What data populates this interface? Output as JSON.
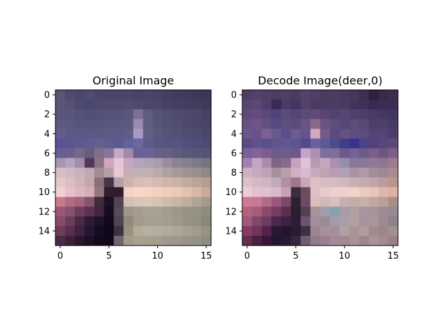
{
  "chart_data": [
    {
      "type": "heatmap",
      "title": "Original Image",
      "xlabel": "",
      "ylabel": "",
      "grid": false,
      "xlim": [
        -0.5,
        15.5
      ],
      "ylim": [
        15.5,
        -0.5
      ],
      "x_ticks": [
        0,
        5,
        10,
        15
      ],
      "y_ticks": [
        0,
        2,
        4,
        6,
        8,
        10,
        12,
        14
      ],
      "pixels": [
        [
          "#5b5475",
          "#4f496d",
          "#4a4670",
          "#514a72",
          "#4b4669",
          "#4c4468",
          "#4b4467",
          "#4c4569",
          "#4a4266",
          "#4b4467",
          "#4a4064",
          "#463d60",
          "#433b5c",
          "#413a5a",
          "#3f3758",
          "#3e3556"
        ],
        [
          "#5b5577",
          "#555076",
          "#4d4a72",
          "#4b4770",
          "#4d4971",
          "#4e4a70",
          "#4f4b70",
          "#504c71",
          "#4c4a6e",
          "#4a476c",
          "#4a456a",
          "#484166",
          "#454063",
          "#433e61",
          "#423c5f",
          "#3f395b"
        ],
        [
          "#5a5478",
          "#58547a",
          "#545178",
          "#524f76",
          "#545177",
          "#565377",
          "#565378",
          "#58567a",
          "#7c6e96",
          "#5f5c80",
          "#555276",
          "#534f72",
          "#4f4b6f",
          "#4e4a6e",
          "#4a476b",
          "#474365"
        ],
        [
          "#5f5881",
          "#5a5780",
          "#575580",
          "#56547e",
          "#57557e",
          "#59577f",
          "#5a587f",
          "#5b5980",
          "#9a8ab0",
          "#605d82",
          "#575578",
          "#535074",
          "#504d71",
          "#4e4a6f",
          "#4a476b",
          "#474467"
        ],
        [
          "#645b8a",
          "#5d5985",
          "#5a5884",
          "#5a5884",
          "#5b5984",
          "#5d5b85",
          "#5d5b84",
          "#5f5c85",
          "#ab98c4",
          "#645f87",
          "#5a587d",
          "#56537a",
          "#545177",
          "#514e74",
          "#4e4b70",
          "#4a476c"
        ],
        [
          "#5b5290",
          "#585792",
          "#5c5a8f",
          "#5f5d90",
          "#62608f",
          "#5c5b92",
          "#5a5a91",
          "#6360a0",
          "#6a689c",
          "#5e5b8e",
          "#585784",
          "#57547f",
          "#555380",
          "#52507d",
          "#4f4d79",
          "#4d4b76"
        ],
        [
          "#685e98",
          "#6a5f90",
          "#77688b",
          "#6c5c7c",
          "#7f6f8c",
          "#897599",
          "#c5a8c8",
          "#a389a8",
          "#6c6092",
          "#6b6394",
          "#656089",
          "#636083",
          "#5e5b7c",
          "#5b5879",
          "#585676",
          "#565474"
        ],
        [
          "#a594b2",
          "#b3a5c1",
          "#a48caa",
          "#4e3a54",
          "#8c7187",
          "#cfa6bb",
          "#e6c4d4",
          "#c6a7c0",
          "#b3a4bb",
          "#aea2b4",
          "#a89cad",
          "#9a8e9e",
          "#8c8393",
          "#838090",
          "#7d7a8a",
          "#77737f"
        ],
        [
          "#d6bec5",
          "#cfbac1",
          "#c9b2ba",
          "#c0aab3",
          "#a48b96",
          "#b79ea9",
          "#e8c8d4",
          "#c8adb4",
          "#c3b0b5",
          "#c1b1b4",
          "#b9abac",
          "#aea1a2",
          "#a69a99",
          "#a09393",
          "#9b8f8f",
          "#938887"
        ],
        [
          "#e4c8c9",
          "#dabfc0",
          "#cfb5b6",
          "#c4a9ab",
          "#8b6f7c",
          "#4a3143",
          "#b49fa7",
          "#ceb0ad",
          "#d5bdb5",
          "#d9c0b6",
          "#d4bab0",
          "#cfb5ab",
          "#c9b2a6",
          "#c2ab9f",
          "#bba496",
          "#b49d91"
        ],
        [
          "#f0d0d6",
          "#e6c0cc",
          "#ddb6c2",
          "#d5adbb",
          "#95757f",
          "#2d1f2e",
          "#2e1d2a",
          "#f5d2c6",
          "#fbd7c7",
          "#f7d5c4",
          "#f2d0c0",
          "#efcdbd",
          "#ebc9b8",
          "#e2c1ae",
          "#d7b8a5",
          "#caa995"
        ],
        [
          "#c67a8d",
          "#b16c80",
          "#a3657a",
          "#86546a",
          "#412c3d",
          "#1c1021",
          "#524454",
          "#d1c0b3",
          "#d7c4b4",
          "#dac8b8",
          "#d4c2b2",
          "#cebcac",
          "#c7b6a6",
          "#bdae9f",
          "#b0a595",
          "#a49b8c"
        ],
        [
          "#9b5773",
          "#87506c",
          "#6d3f5e",
          "#5a3353",
          "#40263f",
          "#150c1f",
          "#57495c",
          "#9f9686",
          "#a69c8c",
          "#a9a191",
          "#a8a092",
          "#a49d8f",
          "#9e978a",
          "#989485",
          "#969283",
          "#8f8d7f"
        ],
        [
          "#864c6b",
          "#6c3c5d",
          "#4a2a47",
          "#2e1a34",
          "#1e1229",
          "#120a1a",
          "#4f4454",
          "#918a7a",
          "#a29a8a",
          "#a59f8e",
          "#a6a091",
          "#a39e90",
          "#9d998c",
          "#979486",
          "#938f81",
          "#8a877a"
        ],
        [
          "#6e3c58",
          "#582f4c",
          "#3f2240",
          "#251631",
          "#140c23",
          "#0e0819",
          "#3a3244",
          "#999081",
          "#b3aa98",
          "#b8b09f",
          "#b5ae9f",
          "#b1ab9c",
          "#aca795",
          "#a5a08f",
          "#a09b8a",
          "#979281"
        ],
        [
          "#4b2a44",
          "#3d2139",
          "#2a172d",
          "#1c1025",
          "#14091c",
          "#100818",
          "#6e6574",
          "#a29a8c",
          "#a8a192",
          "#a59f90",
          "#a39d8e",
          "#a09a8c",
          "#9c988a",
          "#989587",
          "#969385",
          "#8f8c80"
        ]
      ]
    },
    {
      "type": "heatmap",
      "title": "Decode Image(deer,0)",
      "xlabel": "",
      "ylabel": "",
      "grid": false,
      "xlim": [
        -0.5,
        15.5
      ],
      "ylim": [
        15.5,
        -0.5
      ],
      "x_ticks": [
        0,
        5,
        10,
        15
      ],
      "y_ticks": [
        0,
        2,
        4,
        6,
        8,
        10,
        12,
        14
      ],
      "pixels": [
        [
          "#4d3d63",
          "#52426a",
          "#4e3f66",
          "#4b3c61",
          "#503f63",
          "#4c3b5f",
          "#55426a",
          "#4f3e63",
          "#4a3a5e",
          "#4d3c60",
          "#4a395c",
          "#46365a",
          "#3e2e4f",
          "#2f1f3f",
          "#38284a",
          "#3d2d4f"
        ],
        [
          "#59466f",
          "#5d4676",
          "#4f3e6c",
          "#352a58",
          "#4a3b66",
          "#433462",
          "#573f6a",
          "#4c3a64",
          "#493964",
          "#4c3b63",
          "#4a3a5f",
          "#43335a",
          "#3f3057",
          "#392a51",
          "#3c2c52",
          "#3d2d54"
        ],
        [
          "#5f4b78",
          "#644d7e",
          "#5b4979",
          "#4f4478",
          "#594a79",
          "#544574",
          "#5d4a78",
          "#604a78",
          "#574574",
          "#514271",
          "#574671",
          "#4e416b",
          "#4b3f69",
          "#483a65",
          "#453762",
          "#413561"
        ],
        [
          "#655282",
          "#6e5388",
          "#62507f",
          "#574a80",
          "#5f4e80",
          "#5d4b7a",
          "#6b5384",
          "#8a6a8c",
          "#6a5380",
          "#5f4d7c",
          "#574779",
          "#5b4c79",
          "#594774",
          "#4c3e6c",
          "#4e3f6a",
          "#483a66"
        ],
        [
          "#6c568c",
          "#6d4f8b",
          "#7b6293",
          "#6a5a8b",
          "#59508b",
          "#6a5c8c",
          "#655489",
          "#d0a8c0",
          "#725a88",
          "#5b4a80",
          "#625382",
          "#5c4e7f",
          "#5a4c7c",
          "#534477",
          "#544475",
          "#4a3d6c"
        ],
        [
          "#5c4b80",
          "#62508c",
          "#594f8c",
          "#5f558f",
          "#62588f",
          "#5e5590",
          "#514a8d",
          "#69609e",
          "#5e5a96",
          "#4f4b89",
          "#3e3e8b",
          "#38348a",
          "#4a4289",
          "#553f7d",
          "#584776",
          "#5d4a74"
        ],
        [
          "#7c5f99",
          "#83629a",
          "#7d5d8d",
          "#6d5a88",
          "#6e5c8a",
          "#70578b",
          "#c5a4c8",
          "#b090b0",
          "#7f6e98",
          "#7d6f9c",
          "#6a5b8c",
          "#736292",
          "#6b5a86",
          "#7c5f88",
          "#6f5680",
          "#7d5f8a"
        ],
        [
          "#a580b0",
          "#c4a6c6",
          "#a98cb2",
          "#7f6487",
          "#8a6b8b",
          "#c4a2c0",
          "#e2c2d6",
          "#b59bb6",
          "#c5a8c0",
          "#a890b0",
          "#9a8cad",
          "#887898",
          "#8a7898",
          "#907a96",
          "#8e7890",
          "#a07a8e"
        ],
        [
          "#d2b0c4",
          "#c8a8bc",
          "#c0a2b8",
          "#a89098",
          "#b89fa8",
          "#d0b0c4",
          "#d8b8cc",
          "#c6aac0",
          "#c0a2b4",
          "#b89cb2",
          "#b0a0b8",
          "#a894a4",
          "#b09aa6",
          "#a28c98",
          "#a08892",
          "#b08894"
        ],
        [
          "#dcc0c8",
          "#d6b8c4",
          "#cfb4c4",
          "#c4a8bc",
          "#b0909e",
          "#a0788c",
          "#c8a8b6",
          "#dcc0c4",
          "#d8bcc0",
          "#d4bcc4",
          "#d0b8bc",
          "#c8b0b4",
          "#c4aab0",
          "#c0a4a8",
          "#b89ca0",
          "#b8968e"
        ],
        [
          "#ecccd6",
          "#e2c0cc",
          "#e0c0d0",
          "#d8b8ca",
          "#c8a0b8",
          "#3c2c3c",
          "#6a4c5c",
          "#dcc0c8",
          "#e6cad0",
          "#ecd0d2",
          "#ecd2cc",
          "#f0d4c8",
          "#ecccc0",
          "#e6c6b8",
          "#dcb8aa",
          "#e0b0a0"
        ],
        [
          "#d07890",
          "#c87898",
          "#b06c88",
          "#9c587c",
          "#7c4868",
          "#2e2034",
          "#6c4c64",
          "#e0bcb8",
          "#d2b8b8",
          "#d8c0bc",
          "#c8b0b0",
          "#c4aca8",
          "#c8b0a8",
          "#c0a8a0",
          "#b8a098",
          "#a89088"
        ],
        [
          "#b06480",
          "#a85c7c",
          "#8a4c6c",
          "#783c60",
          "#5a3050",
          "#2c1c30",
          "#504050",
          "#a8909c",
          "#a0a0ac",
          "#88a0b0",
          "#a89ca8",
          "#b0a0a4",
          "#a8949c",
          "#a89498",
          "#a08c90",
          "#988890"
        ],
        [
          "#a05878",
          "#804868",
          "#6a3c60",
          "#48284c",
          "#3a2444",
          "#2c1c34",
          "#6c5470",
          "#a08ea0",
          "#9a8a9a",
          "#a49aaa",
          "#a8a0a8",
          "#b0a0a0",
          "#a4949c",
          "#a89698",
          "#9a8a92",
          "#8c808c"
        ],
        [
          "#843c60",
          "#703458",
          "#502448",
          "#2c1834",
          "#24142c",
          "#281c30",
          "#3c3044",
          "#9e8690",
          "#a8909c",
          "#a4909c",
          "#b4a0a0",
          "#a89494",
          "#b49c98",
          "#a08c8c",
          "#9c8888",
          "#a09090"
        ],
        [
          "#642c50",
          "#4c2040",
          "#38183a",
          "#241434",
          "#281830",
          "#38243c",
          "#705c70",
          "#907c8c",
          "#9c8090",
          "#a08c98",
          "#a08c90",
          "#a89494",
          "#9c8890",
          "#a89494",
          "#a08c8c",
          "#988088"
        ]
      ]
    }
  ]
}
